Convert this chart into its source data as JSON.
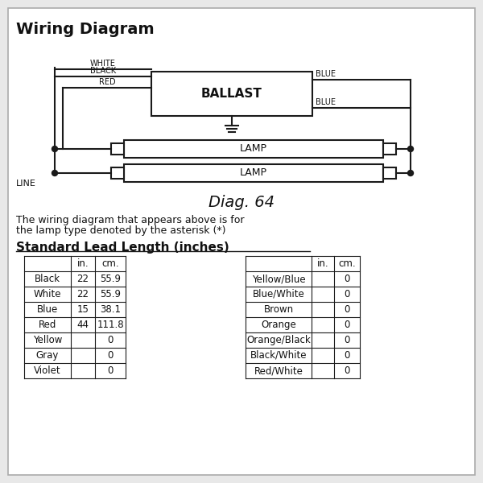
{
  "title": "Wiring Diagram",
  "diag_label": "Diag. 64",
  "description_line1": "The wiring diagram that appears above is for",
  "description_line2": "the lamp type denoted by the asterisk (*)",
  "section_title": "Standard Lead Length (inches)",
  "table1_headers": [
    "",
    "in.",
    "cm."
  ],
  "table1_rows": [
    [
      "Black",
      "22",
      "55.9"
    ],
    [
      "White",
      "22",
      "55.9"
    ],
    [
      "Blue",
      "15",
      "38.1"
    ],
    [
      "Red",
      "44",
      "111.8"
    ],
    [
      "Yellow",
      "",
      "0"
    ],
    [
      "Gray",
      "",
      "0"
    ],
    [
      "Violet",
      "",
      "0"
    ]
  ],
  "table2_headers": [
    "",
    "in.",
    "cm."
  ],
  "table2_rows": [
    [
      "Yellow/Blue",
      "",
      "0"
    ],
    [
      "Blue/White",
      "",
      "0"
    ],
    [
      "Brown",
      "",
      "0"
    ],
    [
      "Orange",
      "",
      "0"
    ],
    [
      "Orange/Black",
      "",
      "0"
    ],
    [
      "Black/White",
      "",
      "0"
    ],
    [
      "Red/White",
      "",
      "0"
    ]
  ],
  "bg_color": "#e8e8e8",
  "box_color": "#ffffff",
  "line_color": "#1a1a1a",
  "text_color": "#111111"
}
